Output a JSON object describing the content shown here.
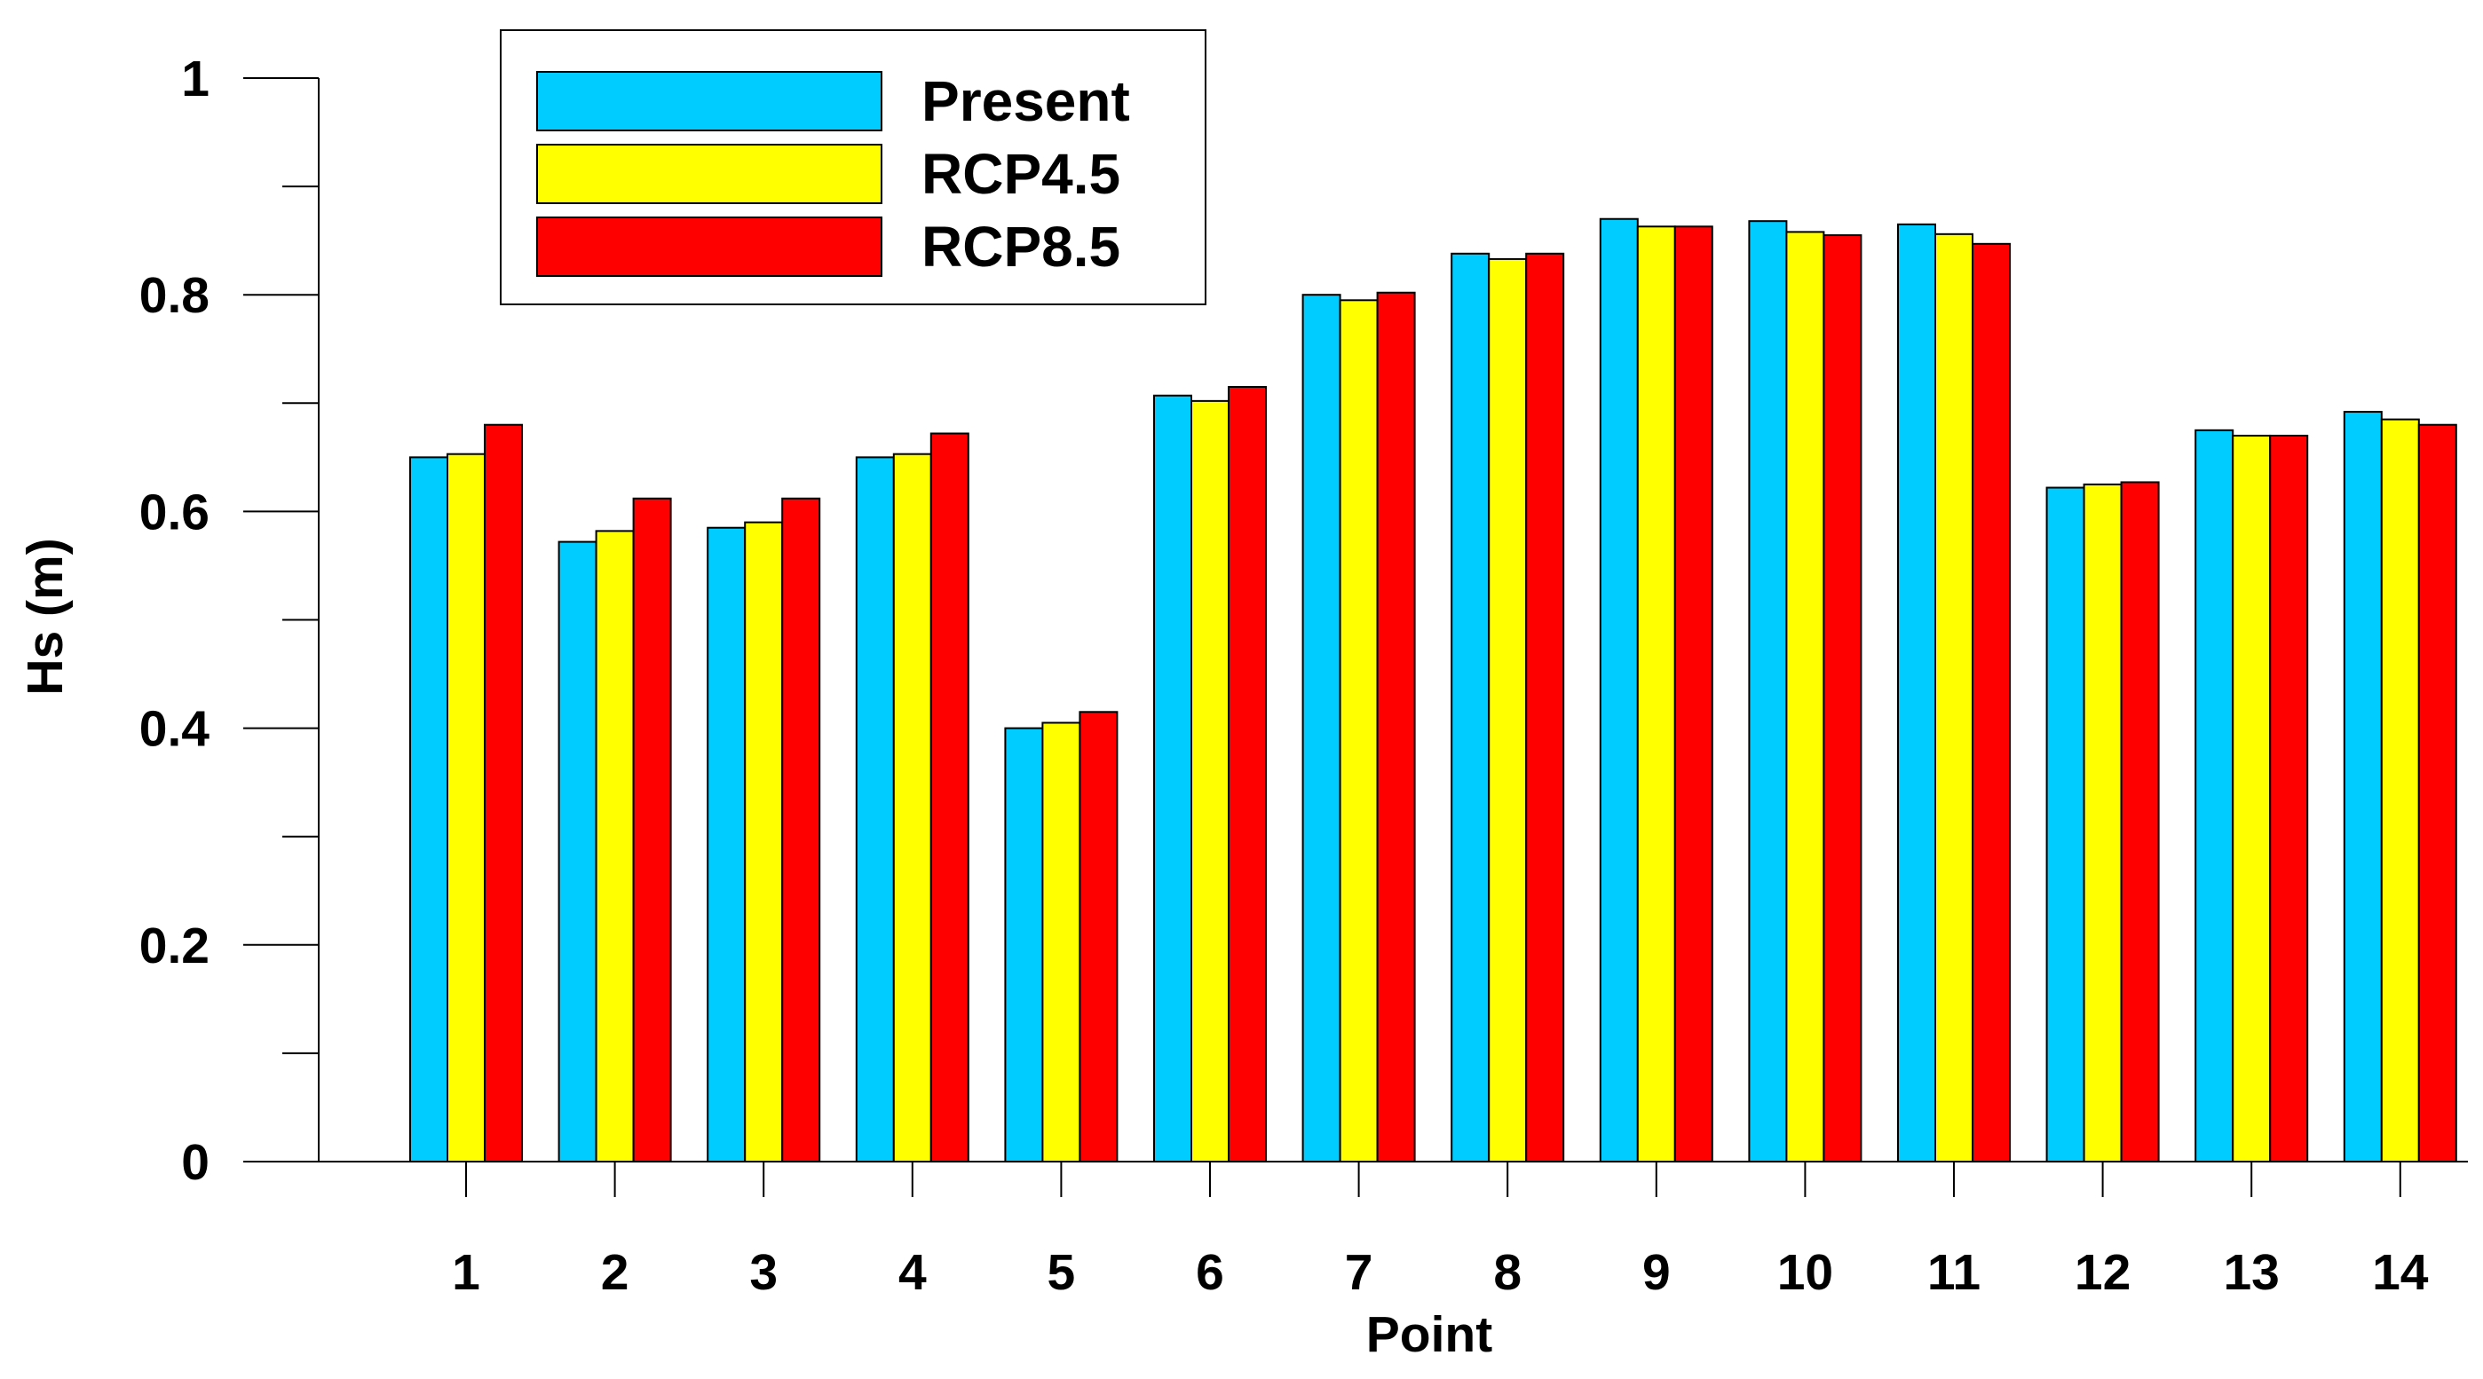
{
  "chart_data": {
    "type": "bar",
    "title": "",
    "xlabel": "Point",
    "ylabel": "Hs (m)",
    "ylim": [
      0,
      1
    ],
    "yticks": [
      "0",
      "0.2",
      "0.4",
      "0.6",
      "0.8",
      "1"
    ],
    "categories": [
      "1",
      "2",
      "3",
      "4",
      "5",
      "6",
      "7",
      "8",
      "9",
      "10",
      "11",
      "12",
      "13",
      "14"
    ],
    "series": [
      {
        "name": "Present",
        "color": "#00CCFF",
        "values": [
          0.65,
          0.572,
          0.585,
          0.65,
          0.4,
          0.707,
          0.8,
          0.838,
          0.87,
          0.868,
          0.865,
          0.622,
          0.675,
          0.692
        ]
      },
      {
        "name": "RCP4.5",
        "color": "#FFFF00",
        "values": [
          0.653,
          0.582,
          0.59,
          0.653,
          0.405,
          0.702,
          0.795,
          0.833,
          0.863,
          0.858,
          0.856,
          0.625,
          0.67,
          0.685
        ]
      },
      {
        "name": "RCP8.5",
        "color": "#FF0000",
        "values": [
          0.68,
          0.612,
          0.612,
          0.672,
          0.415,
          0.715,
          0.802,
          0.838,
          0.863,
          0.855,
          0.847,
          0.627,
          0.67,
          0.68
        ]
      }
    ],
    "grid": false,
    "legend_position": "top-left"
  }
}
